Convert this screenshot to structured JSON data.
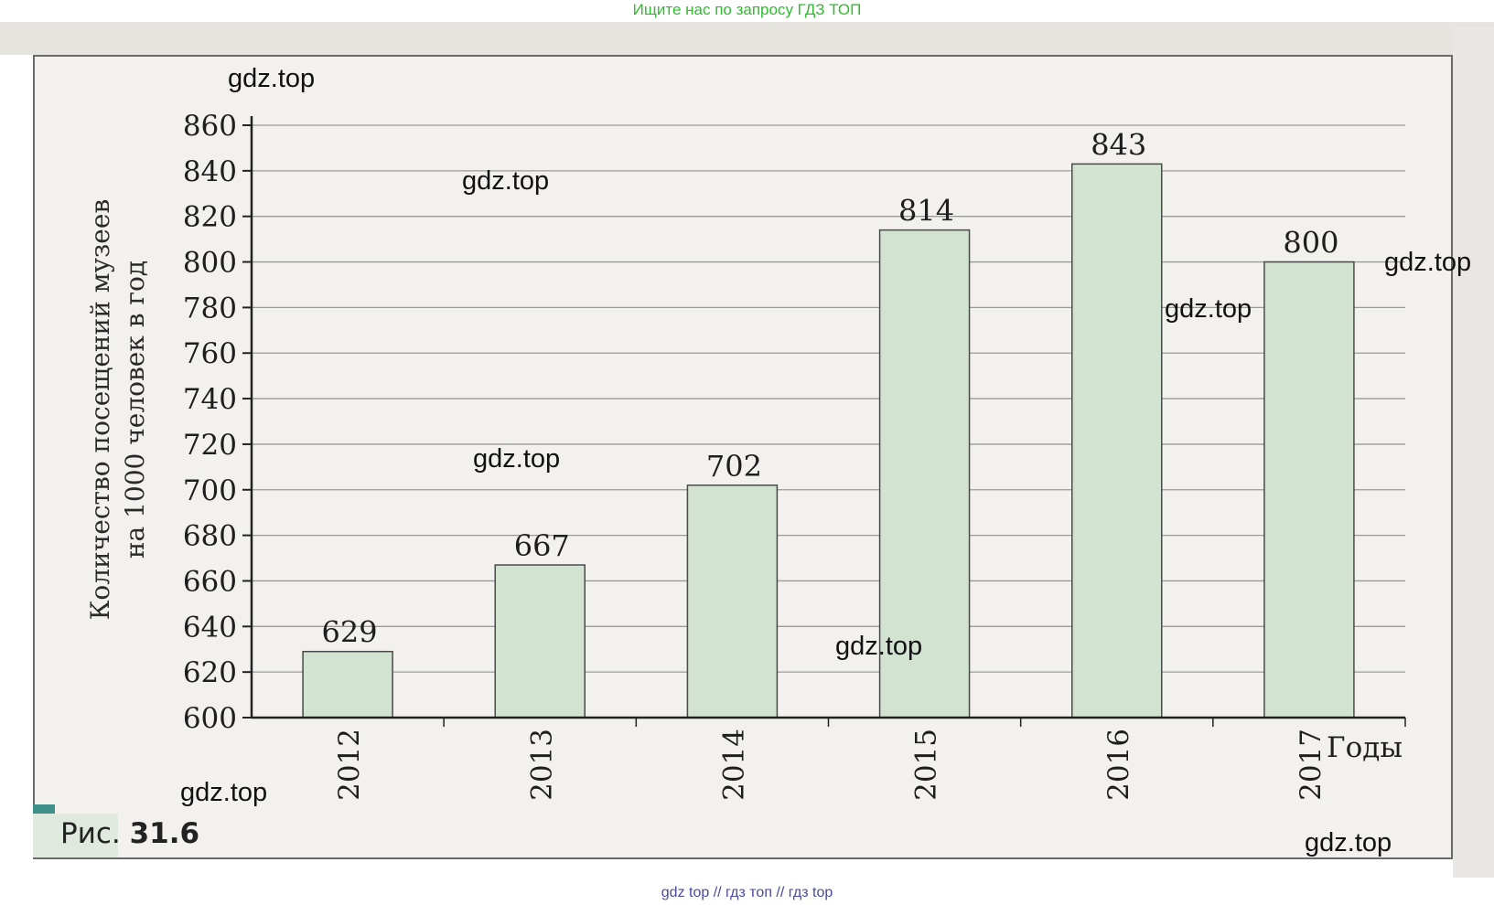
{
  "banner_top": "Ищите нас по запросу ГДЗ ТОП",
  "banner_bottom": "gdz top  //  гдз топ  //  гдз top",
  "caption": {
    "prefix": "Рис.",
    "number": "31.6"
  },
  "watermarks": [
    "gdz.top",
    "gdz.top",
    "gdz.top",
    "gdz.top",
    "gdz.top",
    "gdz.top",
    "gdz.top",
    "gdz.top"
  ],
  "colors": {
    "bar_fill": "#d2e3d2",
    "bar_stroke": "#4a4a4a",
    "axis": "#222222",
    "grid": "#9a9a9a",
    "banner": "#2ebd2e"
  },
  "chart_data": {
    "type": "bar",
    "categories": [
      "2012",
      "2013",
      "2014",
      "2015",
      "2016",
      "2017"
    ],
    "values": [
      629,
      667,
      702,
      814,
      843,
      800
    ],
    "data_labels": [
      "629",
      "667",
      "702",
      "814",
      "843",
      "800"
    ],
    "ylabel_line1": "Количество посещений музеев",
    "ylabel_line2": "на 1000 человек в год",
    "xlabel": "Годы",
    "ylim": [
      600,
      860
    ],
    "yticks": [
      600,
      620,
      640,
      660,
      680,
      700,
      720,
      740,
      760,
      780,
      800,
      820,
      840,
      860
    ],
    "grid": true,
    "legend": "none"
  }
}
